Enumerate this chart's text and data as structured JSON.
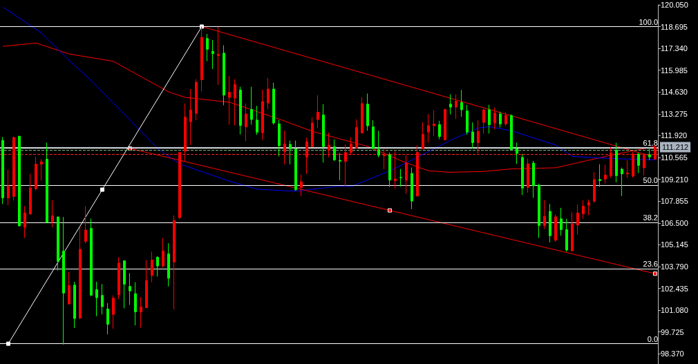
{
  "chart_data": {
    "type": "candlestick",
    "categories": [
      null,
      null,
      null,
      null,
      null,
      null,
      null,
      null,
      null,
      null,
      null,
      null,
      null,
      null,
      null,
      null,
      null,
      null,
      null,
      null,
      null,
      null,
      null,
      null,
      null,
      null,
      null,
      null,
      null,
      null,
      null,
      null,
      null,
      null,
      null,
      null,
      null,
      null,
      null,
      null,
      null,
      null,
      null,
      null,
      null,
      null,
      null,
      null,
      null,
      null,
      null,
      null,
      null,
      null,
      null,
      null,
      null,
      null,
      null,
      null,
      null,
      null,
      null,
      null,
      null,
      null,
      null,
      null,
      null,
      null,
      null,
      null,
      null,
      null,
      null,
      null,
      null,
      null,
      null,
      null,
      null,
      null,
      null,
      null,
      null,
      null,
      null,
      null,
      null,
      null,
      null,
      null,
      null,
      null,
      null,
      null,
      null,
      null,
      null,
      null,
      null,
      null,
      null,
      null,
      null,
      null,
      null,
      null,
      null,
      null,
      null,
      null,
      null,
      null,
      null,
      null,
      null,
      null,
      null
    ],
    "ohlc": [
      [
        111.63,
        111.84,
        107.68,
        108.06
      ],
      [
        108.06,
        109.8,
        107.61,
        108.81
      ],
      [
        108.15,
        111.87,
        107.89,
        111.81
      ],
      [
        111.89,
        111.89,
        106.3,
        106.32
      ],
      [
        106.24,
        107.54,
        105.57,
        107.12
      ],
      [
        107.05,
        109.56,
        107.05,
        108.67
      ],
      [
        108.63,
        110.6,
        108.53,
        110.15
      ],
      [
        110.15,
        110.46,
        109.13,
        110.29
      ],
      [
        110.46,
        111.49,
        106.48,
        106.55
      ],
      [
        106.58,
        107.92,
        106.23,
        106.94
      ],
      [
        106.87,
        106.91,
        103.55,
        104.12
      ],
      [
        104.75,
        106.87,
        98.95,
        102.15
      ],
      [
        101.48,
        103.45,
        101.41,
        102.61
      ],
      [
        102.64,
        102.85,
        99.97,
        100.57
      ],
      [
        100.6,
        106.27,
        100.52,
        104.86
      ],
      [
        105.36,
        107.54,
        105.24,
        106.06
      ],
      [
        106.16,
        106.77,
        101.95,
        102.02
      ],
      [
        102.36,
        102.85,
        100.71,
        101.86
      ],
      [
        102.0,
        102.71,
        100.82,
        101.3
      ],
      [
        101.16,
        101.52,
        99.58,
        100.21
      ],
      [
        100.82,
        102.0,
        99.93,
        101.83
      ],
      [
        102.04,
        104.37,
        101.76,
        104.01
      ],
      [
        104.15,
        104.15,
        101.2,
        102.7
      ],
      [
        102.56,
        103.38,
        101.41,
        102.28
      ],
      [
        102.11,
        102.82,
        100.14,
        100.98
      ],
      [
        100.98,
        101.9,
        100.0,
        101.29
      ],
      [
        101.24,
        104.2,
        101.24,
        102.93
      ],
      [
        103.24,
        104.72,
        102.82,
        104.2
      ],
      [
        104.37,
        104.44,
        103.17,
        103.83
      ],
      [
        103.83,
        105.56,
        103.73,
        104.76
      ],
      [
        104.58,
        105.24,
        102.56,
        103.07
      ],
      [
        104.08,
        106.97,
        101.12,
        106.65
      ],
      [
        106.83,
        110.88,
        106.76,
        110.88
      ],
      [
        110.96,
        113.92,
        110.31,
        113.07
      ],
      [
        112.79,
        114.82,
        111.34,
        113.52
      ],
      [
        113.31,
        115.43,
        112.89,
        115.24
      ],
      [
        115.4,
        118.695,
        114.68,
        118.03
      ],
      [
        117.96,
        118.24,
        116.55,
        117.29
      ],
      [
        117.16,
        117.86,
        116.06,
        117.02
      ],
      [
        116.9,
        118.67,
        115.07,
        116.98
      ],
      [
        117.05,
        117.54,
        113.81,
        114.44
      ],
      [
        114.3,
        115.64,
        112.61,
        114.62
      ],
      [
        114.26,
        115.43,
        112.56,
        115.1
      ],
      [
        114.76,
        114.96,
        112.0,
        112.56
      ],
      [
        112.47,
        113.92,
        111.58,
        113.27
      ],
      [
        113.55,
        114.96,
        112.61,
        112.93
      ],
      [
        112.89,
        113.78,
        111.97,
        112.14
      ],
      [
        112.11,
        114.79,
        111.66,
        114.04
      ],
      [
        113.95,
        115.52,
        113.55,
        114.82
      ],
      [
        114.82,
        115.21,
        112.61,
        112.71
      ],
      [
        112.65,
        112.89,
        110.63,
        111.3
      ],
      [
        110.94,
        112.23,
        110.14,
        111.41
      ],
      [
        111.38,
        111.62,
        110.14,
        111.1
      ],
      [
        111.1,
        111.62,
        108.5,
        108.56
      ],
      [
        108.7,
        109.51,
        108.17,
        109.06
      ],
      [
        110.59,
        111.8,
        109.55,
        111.55
      ],
      [
        111.24,
        113.07,
        111.24,
        112.71
      ],
      [
        112.93,
        114.44,
        112.4,
        113.38
      ],
      [
        113.21,
        113.88,
        110.25,
        111.24
      ],
      [
        111.01,
        112.11,
        110.59,
        111.34
      ],
      [
        111.24,
        111.69,
        110.35,
        110.42
      ],
      [
        110.39,
        110.85,
        109.16,
        110.34
      ],
      [
        110.32,
        111.39,
        108.81,
        110.88
      ],
      [
        110.88,
        111.81,
        110.71,
        111.41
      ],
      [
        111.16,
        112.94,
        111.13,
        112.43
      ],
      [
        112.09,
        114.3,
        112.09,
        113.92
      ],
      [
        113.88,
        114.54,
        112.23,
        112.54
      ],
      [
        112.47,
        112.89,
        111.06,
        111.13
      ],
      [
        111.06,
        112.23,
        110.57,
        110.71
      ],
      [
        110.67,
        111.1,
        109.84,
        110.74
      ],
      [
        110.74,
        110.88,
        108.74,
        109.16
      ],
      [
        109.12,
        110.96,
        108.63,
        109.23
      ],
      [
        109.33,
        109.86,
        108.77,
        109.3
      ],
      [
        109.16,
        110.71,
        108.31,
        110.22
      ],
      [
        109.58,
        109.94,
        107.36,
        107.86
      ],
      [
        108.17,
        111.34,
        108.17,
        110.88
      ],
      [
        111.1,
        112.75,
        111.1,
        112.0
      ],
      [
        112.15,
        113.27,
        111.49,
        112.54
      ],
      [
        112.54,
        113.5,
        111.91,
        112.65
      ],
      [
        112.61,
        112.85,
        111.7,
        111.87
      ],
      [
        111.67,
        113.56,
        111.67,
        113.56
      ],
      [
        113.88,
        114.49,
        113.25,
        113.7
      ],
      [
        113.7,
        114.49,
        112.96,
        114.06
      ],
      [
        113.98,
        114.77,
        113.1,
        113.53
      ],
      [
        113.46,
        113.84,
        111.98,
        112.15
      ],
      [
        112.15,
        112.75,
        111.13,
        111.49
      ],
      [
        111.49,
        112.89,
        110.82,
        112.19
      ],
      [
        112.75,
        113.6,
        112.05,
        113.53
      ],
      [
        113.53,
        113.84,
        112.05,
        112.61
      ],
      [
        112.71,
        113.67,
        112.33,
        113.32
      ],
      [
        113.27,
        113.42,
        112.43,
        112.65
      ],
      [
        112.65,
        113.39,
        112.54,
        113.18
      ],
      [
        113.18,
        113.25,
        110.99,
        111.06
      ],
      [
        111.1,
        111.49,
        110.17,
        110.82
      ],
      [
        110.57,
        110.78,
        108.24,
        108.67
      ],
      [
        108.71,
        110.5,
        108.38,
        110.17
      ],
      [
        110.22,
        110.36,
        108.06,
        108.81
      ],
      [
        108.85,
        108.95,
        105.57,
        106.34
      ],
      [
        106.34,
        107.92,
        106.13,
        106.91
      ],
      [
        107.22,
        107.68,
        105.29,
        105.71
      ],
      [
        105.43,
        107.02,
        105.33,
        106.88
      ],
      [
        106.76,
        107.44,
        105.71,
        106.09
      ],
      [
        106.09,
        106.76,
        104.72,
        104.82
      ],
      [
        104.77,
        107.16,
        104.77,
        106.44
      ],
      [
        106.37,
        107.64,
        105.78,
        107.12
      ],
      [
        107.07,
        107.92,
        106.76,
        107.54
      ],
      [
        107.61,
        107.96,
        106.98,
        107.78
      ],
      [
        107.86,
        109.66,
        107.75,
        109.19
      ],
      [
        109.2,
        110.15,
        108.74,
        109.13
      ],
      [
        109.23,
        110.12,
        108.95,
        109.47
      ],
      [
        109.44,
        111.2,
        109.3,
        110.85
      ],
      [
        111.02,
        111.48,
        109.02,
        109.44
      ],
      [
        109.84,
        109.94,
        108.17,
        109.55
      ],
      [
        109.55,
        110.39,
        109.3,
        109.61
      ],
      [
        109.41,
        110.92,
        109.33,
        110.78
      ],
      [
        110.78,
        110.85,
        109.61,
        110.08
      ],
      [
        109.93,
        110.82,
        109.47,
        110.78
      ],
      [
        110.74,
        111.2,
        110.4,
        110.6
      ],
      [
        110.46,
        111.34,
        110.43,
        111.212
      ]
    ],
    "colors": [
      "#00ff00",
      "#ff0000",
      "#ff0000",
      "#00ff00",
      "#ff0000",
      "#ff0000",
      "#ff0000",
      "#ff0000",
      "#00ff00",
      "#ff0000",
      "#00ff00",
      "#00ff00",
      "#ff0000",
      "#00ff00",
      "#ff0000",
      "#ff0000",
      "#00ff00",
      "#00ff00",
      "#00ff00",
      "#00ff00",
      "#ff0000",
      "#ff0000",
      "#00ff00",
      "#00ff00",
      "#00ff00",
      "#ff0000",
      "#ff0000",
      "#ff0000",
      "#00ff00",
      "#ff0000",
      "#00ff00",
      "#ff0000",
      "#ff0000",
      "#ff0000",
      "#ff0000",
      "#ff0000",
      "#ff0000",
      "#00ff00",
      "#00ff00",
      "#ff0000",
      "#00ff00",
      "#ff0000",
      "#ff0000",
      "#00ff00",
      "#ff0000",
      "#00ff00",
      "#00ff00",
      "#ff0000",
      "#ff0000",
      "#00ff00",
      "#00ff00",
      "#ff0000",
      "#00ff00",
      "#00ff00",
      "#ff0000",
      "#ff0000",
      "#ff0000",
      "#ff0000",
      "#00ff00",
      "#ff0000",
      "#00ff00",
      "#00ff00",
      "#ff0000",
      "#ff0000",
      "#ff0000",
      "#ff0000",
      "#00ff00",
      "#00ff00",
      "#00ff00",
      "#ff0000",
      "#00ff00",
      "#ff0000",
      "#00ff00",
      "#ff0000",
      "#00ff00",
      "#ff0000",
      "#ff0000",
      "#ff0000",
      "#ff0000",
      "#00ff00",
      "#ff0000",
      "#00ff00",
      "#ff0000",
      "#00ff00",
      "#00ff00",
      "#00ff00",
      "#ff0000",
      "#ff0000",
      "#00ff00",
      "#ff0000",
      "#00ff00",
      "#ff0000",
      "#00ff00",
      "#00ff00",
      "#00ff00",
      "#ff0000",
      "#00ff00",
      "#00ff00",
      "#ff0000",
      "#00ff00",
      "#ff0000",
      "#00ff00",
      "#00ff00",
      "#ff0000",
      "#ff0000",
      "#ff0000",
      "#ff0000",
      "#ff0000",
      "#00ff00",
      "#ff0000",
      "#ff0000",
      "#00ff00",
      "#00ff00",
      "#ff0000",
      "#ff0000",
      "#00ff00",
      "#ff0000",
      "#00ff00",
      "#ff0000"
    ],
    "series": [
      {
        "type": "line",
        "color": "#ff0000",
        "marker": "none",
        "values": [
          117.47,
          null,
          null,
          null,
          null,
          null,
          117.68,
          null,
          null,
          null,
          null,
          null,
          117.0,
          null,
          null,
          null,
          null,
          null,
          null,
          null,
          116.54,
          null,
          null,
          null,
          null,
          null,
          null,
          null,
          null,
          null,
          114.64,
          null,
          null,
          114.3,
          null,
          null,
          null,
          null,
          null,
          null,
          null,
          114.0,
          null,
          null,
          null,
          null,
          null,
          null,
          null,
          null,
          112.95,
          null,
          null,
          null,
          null,
          null,
          112.19,
          null,
          null,
          null,
          null,
          111.72,
          null,
          null,
          null,
          null,
          111.26,
          null,
          null,
          null,
          null,
          null,
          110.37,
          null,
          null,
          null,
          null,
          109.74,
          null,
          null,
          null,
          109.65,
          null,
          null,
          null,
          null,
          null,
          109.7,
          null,
          null,
          null,
          null,
          109.86,
          null,
          null,
          null,
          null,
          null,
          null,
          null,
          109.93,
          null,
          null,
          null,
          null,
          null,
          null,
          null,
          null,
          null,
          110.71,
          null,
          null,
          null,
          null,
          null,
          null,
          null,
          111.26
        ]
      },
      {
        "type": "line",
        "color": "#0000ff",
        "marker": "none",
        "values": [
          119.92,
          null,
          null,
          null,
          null,
          null,
          null,
          118.3,
          null,
          null,
          null,
          null,
          116.6,
          null,
          null,
          null,
          115.35,
          null,
          null,
          null,
          113.96,
          null,
          null,
          null,
          null,
          null,
          null,
          null,
          111.13,
          null,
          null,
          null,
          110.16,
          null,
          null,
          null,
          null,
          null,
          null,
          null,
          null,
          109.1,
          null,
          null,
          null,
          null,
          108.6,
          null,
          null,
          null,
          null,
          null,
          null,
          108.47,
          null,
          null,
          null,
          null,
          null,
          null,
          null,
          108.8,
          null,
          108.76,
          null,
          null,
          null,
          null,
          null,
          null,
          109.74,
          null,
          null,
          null,
          null,
          110.58,
          null,
          null,
          null,
          null,
          null,
          111.64,
          null,
          null,
          null,
          null,
          112.4,
          null,
          112.48,
          null,
          null,
          null,
          112.23,
          null,
          null,
          null,
          null,
          null,
          null,
          null,
          111.34,
          null,
          null,
          110.64,
          null,
          null,
          null,
          null,
          null,
          null,
          110.5,
          null,
          null,
          null,
          null,
          null,
          null,
          null,
          110.42
        ]
      },
      {
        "type": "line",
        "color": "#ff0000",
        "marker": "none",
        "values": [
          null,
          null,
          null,
          null,
          null,
          null,
          null,
          null,
          null,
          null,
          null,
          null,
          null,
          null,
          null,
          null,
          null,
          null,
          null,
          null,
          null,
          null,
          null,
          null,
          null,
          null,
          null,
          null,
          null,
          null,
          null,
          null,
          null,
          null,
          null,
          null,
          118.7,
          null,
          null,
          null,
          null,
          null,
          null,
          null,
          null,
          null,
          null,
          null,
          null,
          null,
          null,
          null,
          null,
          null,
          null,
          null,
          null,
          null,
          null,
          null,
          null,
          null,
          null,
          null,
          null,
          null,
          null,
          null,
          null,
          null,
          null,
          null,
          null,
          null,
          null,
          null,
          null,
          null,
          null,
          null,
          null,
          null,
          null,
          null,
          null,
          null,
          null,
          null,
          null,
          null,
          null,
          null,
          null,
          null,
          null,
          null,
          null,
          null,
          null,
          null,
          null,
          null,
          null,
          null,
          null,
          null,
          null,
          null,
          null,
          null,
          null,
          null,
          null,
          null,
          null,
          null,
          null,
          110.68,
          null
        ]
      },
      {
        "type": "line",
        "color": "#ff0000",
        "marker": "square",
        "values": [
          null,
          null,
          null,
          null,
          null,
          null,
          null,
          null,
          null,
          null,
          null,
          null,
          null,
          null,
          null,
          null,
          null,
          null,
          null,
          null,
          null,
          null,
          null,
          111.13,
          null,
          null,
          null,
          null,
          null,
          null,
          null,
          null,
          null,
          null,
          null,
          null,
          null,
          null,
          null,
          null,
          null,
          null,
          null,
          null,
          null,
          null,
          null,
          null,
          null,
          null,
          null,
          null,
          null,
          null,
          null,
          null,
          null,
          null,
          null,
          null,
          null,
          null,
          null,
          null,
          null,
          null,
          null,
          null,
          null,
          null,
          107.28,
          null,
          null,
          null,
          null,
          null,
          null,
          null,
          null,
          null,
          null,
          null,
          null,
          null,
          null,
          null,
          null,
          null,
          null,
          null,
          null,
          null,
          null,
          null,
          null,
          null,
          null,
          null,
          null,
          null,
          null,
          null,
          null,
          null,
          null,
          null,
          null,
          null,
          null,
          null,
          null,
          null,
          null,
          null,
          null,
          null,
          null,
          null,
          103.35
        ]
      },
      {
        "type": "line",
        "color": "#ffffff",
        "marker": "square",
        "values": [
          null,
          99.0,
          null,
          null,
          null,
          null,
          null,
          null,
          null,
          null,
          null,
          null,
          null,
          null,
          null,
          null,
          null,
          null,
          108.57,
          null,
          null,
          null,
          null,
          null,
          null,
          null,
          null,
          null,
          null,
          null,
          null,
          null,
          null,
          null,
          null,
          null,
          118.7,
          null,
          null,
          null,
          null,
          null,
          null,
          null,
          null,
          null,
          null,
          null,
          null,
          null,
          null,
          null,
          null,
          null,
          null,
          null,
          null,
          null,
          null,
          null,
          null,
          null,
          null,
          null,
          null,
          null,
          null,
          null,
          null,
          null,
          null,
          null,
          null,
          null,
          null,
          null,
          null,
          null,
          null,
          null,
          null,
          null,
          null,
          null,
          null,
          null,
          null,
          null,
          null,
          null,
          null,
          null,
          null,
          null,
          null,
          null,
          null,
          null,
          null,
          null,
          null,
          null,
          null,
          null,
          null,
          null,
          null,
          null,
          null,
          null,
          null,
          null,
          null,
          null,
          null,
          null,
          null,
          null,
          null
        ]
      }
    ],
    "annotations": [
      {
        "text": "100.0",
        "y": 118.695
      },
      {
        "text": "61.8",
        "y": 111.17
      },
      {
        "text": "50.0",
        "y": 108.85
      },
      {
        "text": "38.2",
        "y": 106.52
      },
      {
        "text": "23.6",
        "y": 103.65
      },
      {
        "text": "0.0",
        "y": 99.0
      }
    ],
    "ref_lines": [
      {
        "axis": "y",
        "value": 118.695,
        "color": "#ffffff"
      },
      {
        "axis": "y",
        "value": 111.17,
        "color": "#ffffff"
      },
      {
        "axis": "y",
        "value": 108.85,
        "color": "#ffffff"
      },
      {
        "axis": "y",
        "value": 106.52,
        "color": "#ffffff"
      },
      {
        "axis": "y",
        "value": 103.65,
        "color": "#ffffff"
      },
      {
        "axis": "y",
        "value": 99.0,
        "color": "#ffffff"
      },
      {
        "axis": "y",
        "value": 111.212,
        "label": "111.212",
        "color": "#a8b4c0",
        "line_style": "solid"
      },
      {
        "axis": "y",
        "value": 111.05,
        "color": "#80c080",
        "line_style": "dashed"
      },
      {
        "axis": "y",
        "value": 110.79,
        "color": "#ff2020",
        "line_style": "dashed"
      }
    ],
    "ylim": [
      97.74,
      120.05
    ],
    "yticks": [
      {
        "value": 98.37,
        "label": "98.370"
      },
      {
        "value": 99.725,
        "label": "99.725"
      },
      {
        "value": 101.08,
        "label": "101.080"
      },
      {
        "value": 102.435,
        "label": "102.435"
      },
      {
        "value": 103.79,
        "label": "103.790"
      },
      {
        "value": 105.145,
        "label": "105.145"
      },
      {
        "value": 106.5,
        "label": "106.500"
      },
      {
        "value": 107.855,
        "label": "107.855"
      },
      {
        "value": 109.21,
        "label": "109.210"
      },
      {
        "value": 110.565,
        "label": "110.565"
      },
      {
        "value": 111.92,
        "label": "111.920"
      },
      {
        "value": 113.275,
        "label": "113.275"
      },
      {
        "value": 114.63,
        "label": "114.630"
      },
      {
        "value": 115.985,
        "label": "115.985"
      },
      {
        "value": 117.34,
        "label": "117.340"
      },
      {
        "value": 118.695,
        "label": "118.695"
      },
      {
        "value": 120.05,
        "label": "120.050"
      }
    ],
    "tick_labels": "y",
    "grid": false
  }
}
